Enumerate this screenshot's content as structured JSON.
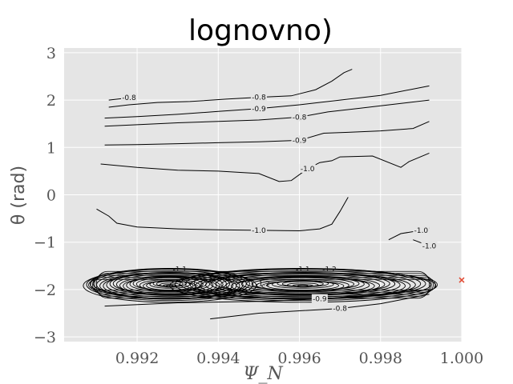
{
  "chart_data": {
    "type": "contour",
    "title": "lognovno)",
    "xlabel": "Ψ_N",
    "ylabel": "θ (rad)",
    "xlim": [
      0.9902,
      1.0
    ],
    "ylim": [
      -3.1,
      3.1
    ],
    "x_ticks": [
      "0.992",
      "0.994",
      "0.996",
      "0.998",
      "1.000"
    ],
    "y_ticks": [
      "−3",
      "−2",
      "−1",
      "0",
      "1",
      "2",
      "3"
    ],
    "grid": true,
    "background": "#e5e5e5",
    "line_color": "#000000",
    "marker": {
      "x": 1.0,
      "y": -1.8,
      "symbol": "x",
      "color": "#e24a33"
    },
    "contours": [
      {
        "level": -0.8,
        "label": "-0.8",
        "points": [
          [
            0.9913,
            1.85
          ],
          [
            0.9918,
            1.9
          ],
          [
            0.9925,
            1.95
          ],
          [
            0.9933,
            1.97
          ],
          [
            0.9942,
            2.02
          ],
          [
            0.995,
            2.06
          ],
          [
            0.9958,
            2.09
          ],
          [
            0.9964,
            2.22
          ],
          [
            0.9968,
            2.4
          ],
          [
            0.9971,
            2.58
          ],
          [
            0.9973,
            2.65
          ]
        ]
      },
      {
        "level": -0.8,
        "label": "-0.8",
        "points": [
          [
            0.9913,
            2.0
          ],
          [
            0.9918,
            2.05
          ]
        ]
      },
      {
        "level": -0.9,
        "label": "-0.9",
        "points": [
          [
            0.9912,
            1.62
          ],
          [
            0.992,
            1.65
          ],
          [
            0.993,
            1.7
          ],
          [
            0.994,
            1.76
          ],
          [
            0.995,
            1.82
          ],
          [
            0.996,
            1.9
          ],
          [
            0.997,
            2.0
          ],
          [
            0.998,
            2.1
          ],
          [
            0.9992,
            2.3
          ]
        ]
      },
      {
        "level": -0.8,
        "label": "-0.8",
        "points": [
          [
            0.9912,
            1.45
          ],
          [
            0.992,
            1.48
          ],
          [
            0.993,
            1.52
          ],
          [
            0.994,
            1.55
          ],
          [
            0.995,
            1.58
          ],
          [
            0.996,
            1.64
          ],
          [
            0.9967,
            1.75
          ],
          [
            0.9975,
            1.83
          ],
          [
            0.998,
            1.88
          ],
          [
            0.9992,
            2.0
          ]
        ]
      },
      {
        "level": -0.9,
        "label": "-0.9",
        "points": [
          [
            0.9912,
            1.05
          ],
          [
            0.992,
            1.06
          ],
          [
            0.993,
            1.08
          ],
          [
            0.994,
            1.1
          ],
          [
            0.995,
            1.12
          ],
          [
            0.996,
            1.15
          ],
          [
            0.9966,
            1.3
          ],
          [
            0.9972,
            1.32
          ],
          [
            0.998,
            1.35
          ],
          [
            0.9988,
            1.4
          ],
          [
            0.9992,
            1.55
          ]
        ]
      },
      {
        "level": -1.0,
        "label": "-1.0",
        "points": [
          [
            0.9911,
            0.65
          ],
          [
            0.992,
            0.58
          ],
          [
            0.993,
            0.52
          ],
          [
            0.994,
            0.5
          ],
          [
            0.995,
            0.45
          ],
          [
            0.9955,
            0.28
          ],
          [
            0.9958,
            0.3
          ],
          [
            0.9962,
            0.55
          ],
          [
            0.9965,
            0.68
          ],
          [
            0.9968,
            0.72
          ],
          [
            0.997,
            0.8
          ],
          [
            0.9978,
            0.82
          ],
          [
            0.9985,
            0.58
          ],
          [
            0.9987,
            0.7
          ],
          [
            0.9992,
            0.88
          ]
        ]
      },
      {
        "level": -1.0,
        "label": "-1.0",
        "points": [
          [
            0.991,
            -0.3
          ],
          [
            0.9913,
            -0.45
          ],
          [
            0.9915,
            -0.6
          ],
          [
            0.992,
            -0.68
          ],
          [
            0.993,
            -0.72
          ],
          [
            0.994,
            -0.74
          ],
          [
            0.995,
            -0.75
          ],
          [
            0.996,
            -0.76
          ],
          [
            0.9965,
            -0.72
          ],
          [
            0.9968,
            -0.62
          ],
          [
            0.997,
            -0.35
          ],
          [
            0.9972,
            -0.05
          ]
        ]
      },
      {
        "level": -1.0,
        "label": "-1.0",
        "points": [
          [
            0.9982,
            -0.95
          ],
          [
            0.9985,
            -0.82
          ],
          [
            0.999,
            -0.75
          ],
          [
            0.9992,
            -0.7
          ]
        ]
      },
      {
        "level": -1.0,
        "label": "-1.0",
        "points": [
          [
            0.9988,
            -0.95
          ],
          [
            0.9992,
            -1.08
          ]
        ]
      },
      {
        "level": -0.9,
        "label": "-0.9",
        "points": [
          [
            0.9912,
            -2.35
          ],
          [
            0.993,
            -2.28
          ],
          [
            0.995,
            -2.25
          ],
          [
            0.9965,
            -2.2
          ],
          [
            0.998,
            -2.1
          ],
          [
            0.9992,
            -2.0
          ]
        ]
      },
      {
        "level": -0.8,
        "label": "-0.8",
        "points": [
          [
            0.9938,
            -2.62
          ],
          [
            0.995,
            -2.5
          ],
          [
            0.996,
            -2.45
          ],
          [
            0.997,
            -2.4
          ],
          [
            0.998,
            -2.3
          ],
          [
            0.9992,
            -2.1
          ]
        ]
      }
    ],
    "dense_band": {
      "x_range": [
        0.991,
        0.9992
      ],
      "y_range": [
        -2.25,
        -1.55
      ],
      "levels": [
        "-1.1",
        "-1.2",
        "-1.1",
        "-1.1",
        "-1.2"
      ]
    }
  }
}
